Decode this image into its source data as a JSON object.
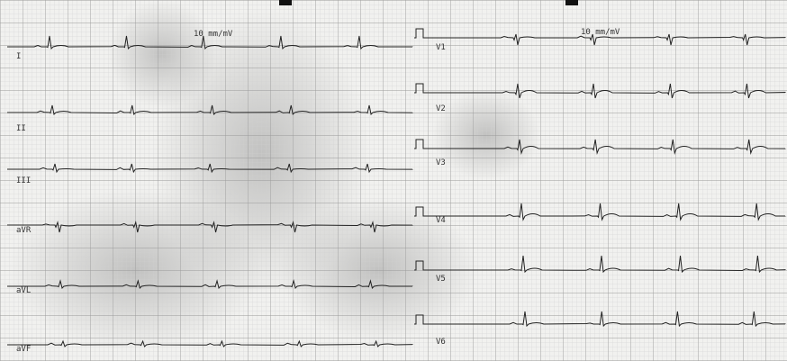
{
  "calibration": [
    "10 mm/mV",
    "10 mm/mV"
  ],
  "limb_leads": [
    "I",
    "II",
    "III",
    "aVR",
    "aVL",
    "aVF"
  ],
  "chest_leads": [
    "V1",
    "V2",
    "V3",
    "V4",
    "V5",
    "V6"
  ]
}
